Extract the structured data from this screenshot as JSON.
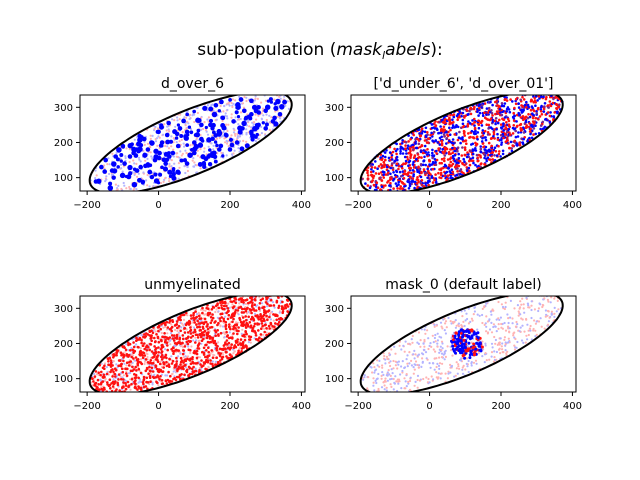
{
  "figure": {
    "suptitle_prefix": "sub-population (",
    "suptitle_math": "mask",
    "suptitle_sub": "l",
    "suptitle_math2": "abels",
    "suptitle_suffix": "):"
  },
  "colors": {
    "highlight_blue": "#0000ff",
    "highlight_red": "#ff1010",
    "faint_red": "#ffb3b3",
    "faint_blue": "#b3b3ff",
    "ellipse": "#000000"
  },
  "chart_data": [
    {
      "type": "scatter",
      "title": "d_over_6",
      "xlim": [
        -220,
        410
      ],
      "ylim": [
        62,
        335
      ],
      "xticks": [
        -200,
        0,
        200,
        400
      ],
      "yticks": [
        100,
        200,
        300
      ],
      "ellipse": {
        "center": [
          90,
          200
        ],
        "semi_major": 305,
        "semi_minor": 90,
        "angle_deg": 23
      },
      "background": "mixed faint red and blue points filling ellipse",
      "highlight": "sparse blue dots scattered across ellipse",
      "series": [
        {
          "x": [
            -148,
            -120,
            -95,
            -70,
            -50,
            -30,
            -10,
            10,
            30,
            55,
            80,
            100,
            120,
            145,
            170,
            190,
            210,
            235,
            260,
            280,
            300,
            325,
            345,
            -160,
            -130,
            -100,
            -60,
            -20,
            20,
            60,
            100,
            140,
            180,
            220,
            260,
            300,
            340,
            -80,
            0,
            80,
            160,
            240,
            320,
            -40,
            40,
            120,
            200,
            280
          ],
          "y": [
            150,
            160,
            140,
            170,
            130,
            180,
            150,
            200,
            160,
            190,
            230,
            170,
            210,
            250,
            180,
            220,
            260,
            240,
            280,
            250,
            290,
            270,
            300,
            130,
            120,
            190,
            120,
            200,
            140,
            240,
            200,
            160,
            270,
            200,
            230,
            240,
            280,
            160,
            230,
            140,
            220,
            290,
            260,
            210,
            170,
            250,
            180,
            300
          ]
        }
      ]
    },
    {
      "type": "scatter",
      "title": "['d_under_6', 'd_over_01']",
      "xlim": [
        -220,
        410
      ],
      "ylim": [
        62,
        335
      ],
      "xticks": [
        -200,
        0,
        200,
        400
      ],
      "yticks": [
        100,
        200,
        300
      ],
      "ellipse": {
        "center": [
          90,
          200
        ],
        "semi_major": 305,
        "semi_minor": 90,
        "angle_deg": 23
      },
      "highlight": "dense red and blue points filling ellipse"
    },
    {
      "type": "scatter",
      "title": "unmyelinated",
      "xlim": [
        -220,
        410
      ],
      "ylim": [
        62,
        335
      ],
      "xticks": [
        -200,
        0,
        200,
        400
      ],
      "yticks": [
        100,
        200,
        300
      ],
      "ellipse": {
        "center": [
          90,
          200
        ],
        "semi_major": 305,
        "semi_minor": 90,
        "angle_deg": 23
      },
      "highlight": "dense red points over faint blue background"
    },
    {
      "type": "scatter",
      "title": "mask_0 (default label)",
      "xlim": [
        -220,
        410
      ],
      "ylim": [
        62,
        335
      ],
      "xticks": [
        -200,
        0,
        200,
        400
      ],
      "yticks": [
        100,
        200,
        300
      ],
      "ellipse": {
        "center": [
          90,
          200
        ],
        "semi_major": 305,
        "semi_minor": 90,
        "angle_deg": 23
      },
      "background": "faint red and blue points filling ellipse",
      "highlight_circle": {
        "center": [
          105,
          200
        ],
        "radius": 45
      }
    }
  ]
}
